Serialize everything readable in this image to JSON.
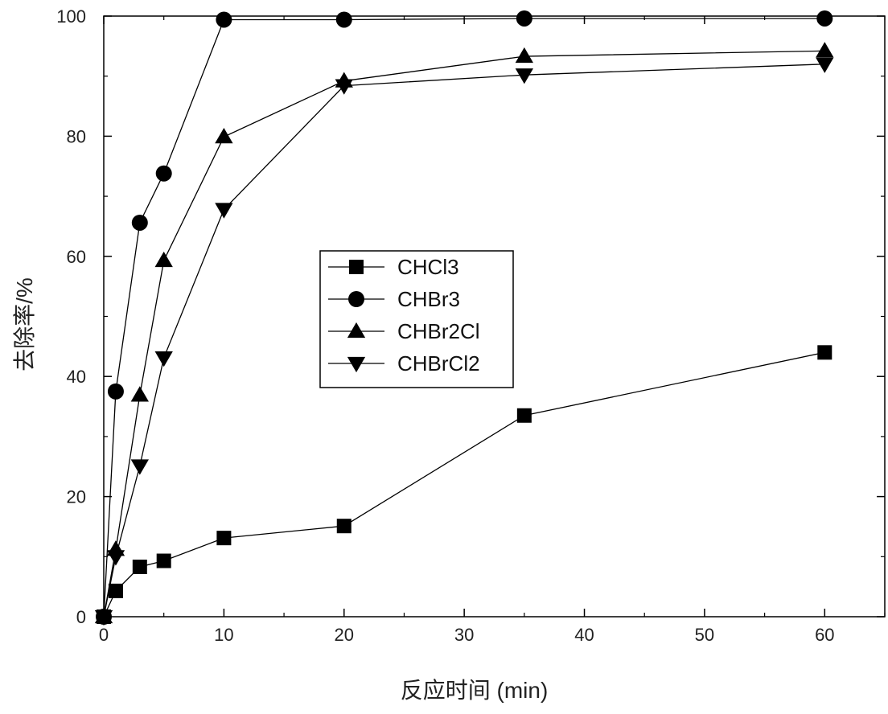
{
  "chart_data": {
    "type": "line",
    "xlabel": "反应时间 (min)",
    "ylabel": "去除率/%",
    "xlim": [
      0,
      65
    ],
    "ylim": [
      0,
      100
    ],
    "x_ticks": [
      0,
      10,
      20,
      30,
      40,
      50,
      60
    ],
    "y_ticks": [
      0,
      20,
      40,
      60,
      80,
      100
    ],
    "grid": false,
    "legend_position": "center",
    "line_color": "#000000",
    "series": [
      {
        "name": "CHCl3",
        "marker": "square",
        "x": [
          0,
          1,
          3,
          5,
          10,
          20,
          35,
          60
        ],
        "values": [
          0,
          4.3,
          8.3,
          9.3,
          13.1,
          15.1,
          33.5,
          44.0
        ]
      },
      {
        "name": "CHBr3",
        "marker": "circle",
        "x": [
          0,
          1,
          3,
          5,
          10,
          20,
          35,
          60
        ],
        "values": [
          0,
          37.5,
          65.6,
          73.8,
          99.4,
          99.4,
          99.6,
          99.6
        ]
      },
      {
        "name": "CHBr2Cl",
        "marker": "triangle-up",
        "x": [
          0,
          1,
          3,
          5,
          10,
          20,
          35,
          60
        ],
        "values": [
          0,
          11.2,
          36.9,
          59.3,
          79.9,
          89.2,
          93.3,
          94.2
        ]
      },
      {
        "name": "CHBrCl2",
        "marker": "triangle-down",
        "x": [
          0,
          1,
          3,
          5,
          10,
          20,
          35,
          60
        ],
        "values": [
          0,
          10.0,
          25.1,
          43.1,
          67.8,
          88.4,
          90.2,
          92.0
        ]
      }
    ]
  }
}
